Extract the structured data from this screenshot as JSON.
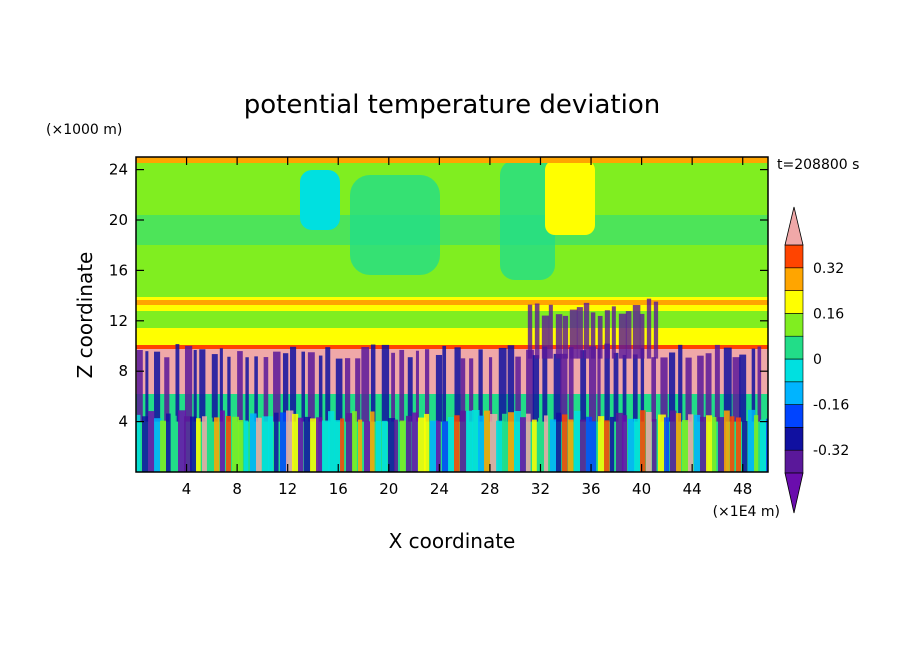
{
  "chart_data": {
    "type": "heatmap",
    "title": "potential temperature deviation",
    "xlabel": "X coordinate",
    "ylabel": "Z coordinate",
    "x_unit": "(×1E4 m)",
    "y_unit": "(×1000 m)",
    "time_label": "t=208800 s",
    "xlim": [
      0,
      50
    ],
    "ylim": [
      0,
      25
    ],
    "x_ticks": [
      4,
      8,
      12,
      16,
      20,
      24,
      28,
      32,
      36,
      40,
      44,
      48
    ],
    "y_ticks": [
      4,
      8,
      12,
      16,
      20,
      24
    ],
    "colorbar": {
      "levels": [
        -0.4,
        -0.32,
        -0.24,
        -0.16,
        -0.08,
        0,
        0.08,
        0.16,
        0.24,
        0.32,
        0.4
      ],
      "colors": [
        "#6a0dad",
        "#5a189a",
        "#1010a0",
        "#0044ff",
        "#00b4ff",
        "#00e0e0",
        "#22dd88",
        "#80ee20",
        "#ffff00",
        "#ffa500",
        "#ff4400",
        "#f0a8a8"
      ],
      "tick_labels": [
        "0.32",
        "0.16",
        "0",
        "-0.16",
        "-0.32"
      ],
      "tick_values": [
        0.32,
        0.16,
        0,
        -0.16,
        -0.32
      ],
      "extend": "both"
    },
    "field_bands": [
      {
        "z": [
          0,
          4
        ],
        "value_range": [
          -0.4,
          0.4
        ],
        "character": "alternating convective columns"
      },
      {
        "z": [
          4,
          9.5
        ],
        "value_range": [
          -0.4,
          0.4
        ],
        "character": "pink and purple plumes"
      },
      {
        "z": [
          9.5,
          10
        ],
        "value": 0.3
      },
      {
        "z": [
          10,
          12.5
        ],
        "value": 0.1
      },
      {
        "z": [
          12.5,
          13.5
        ],
        "value": 0.2
      },
      {
        "z": [
          13.5,
          25
        ],
        "value": 0.04
      }
    ]
  }
}
